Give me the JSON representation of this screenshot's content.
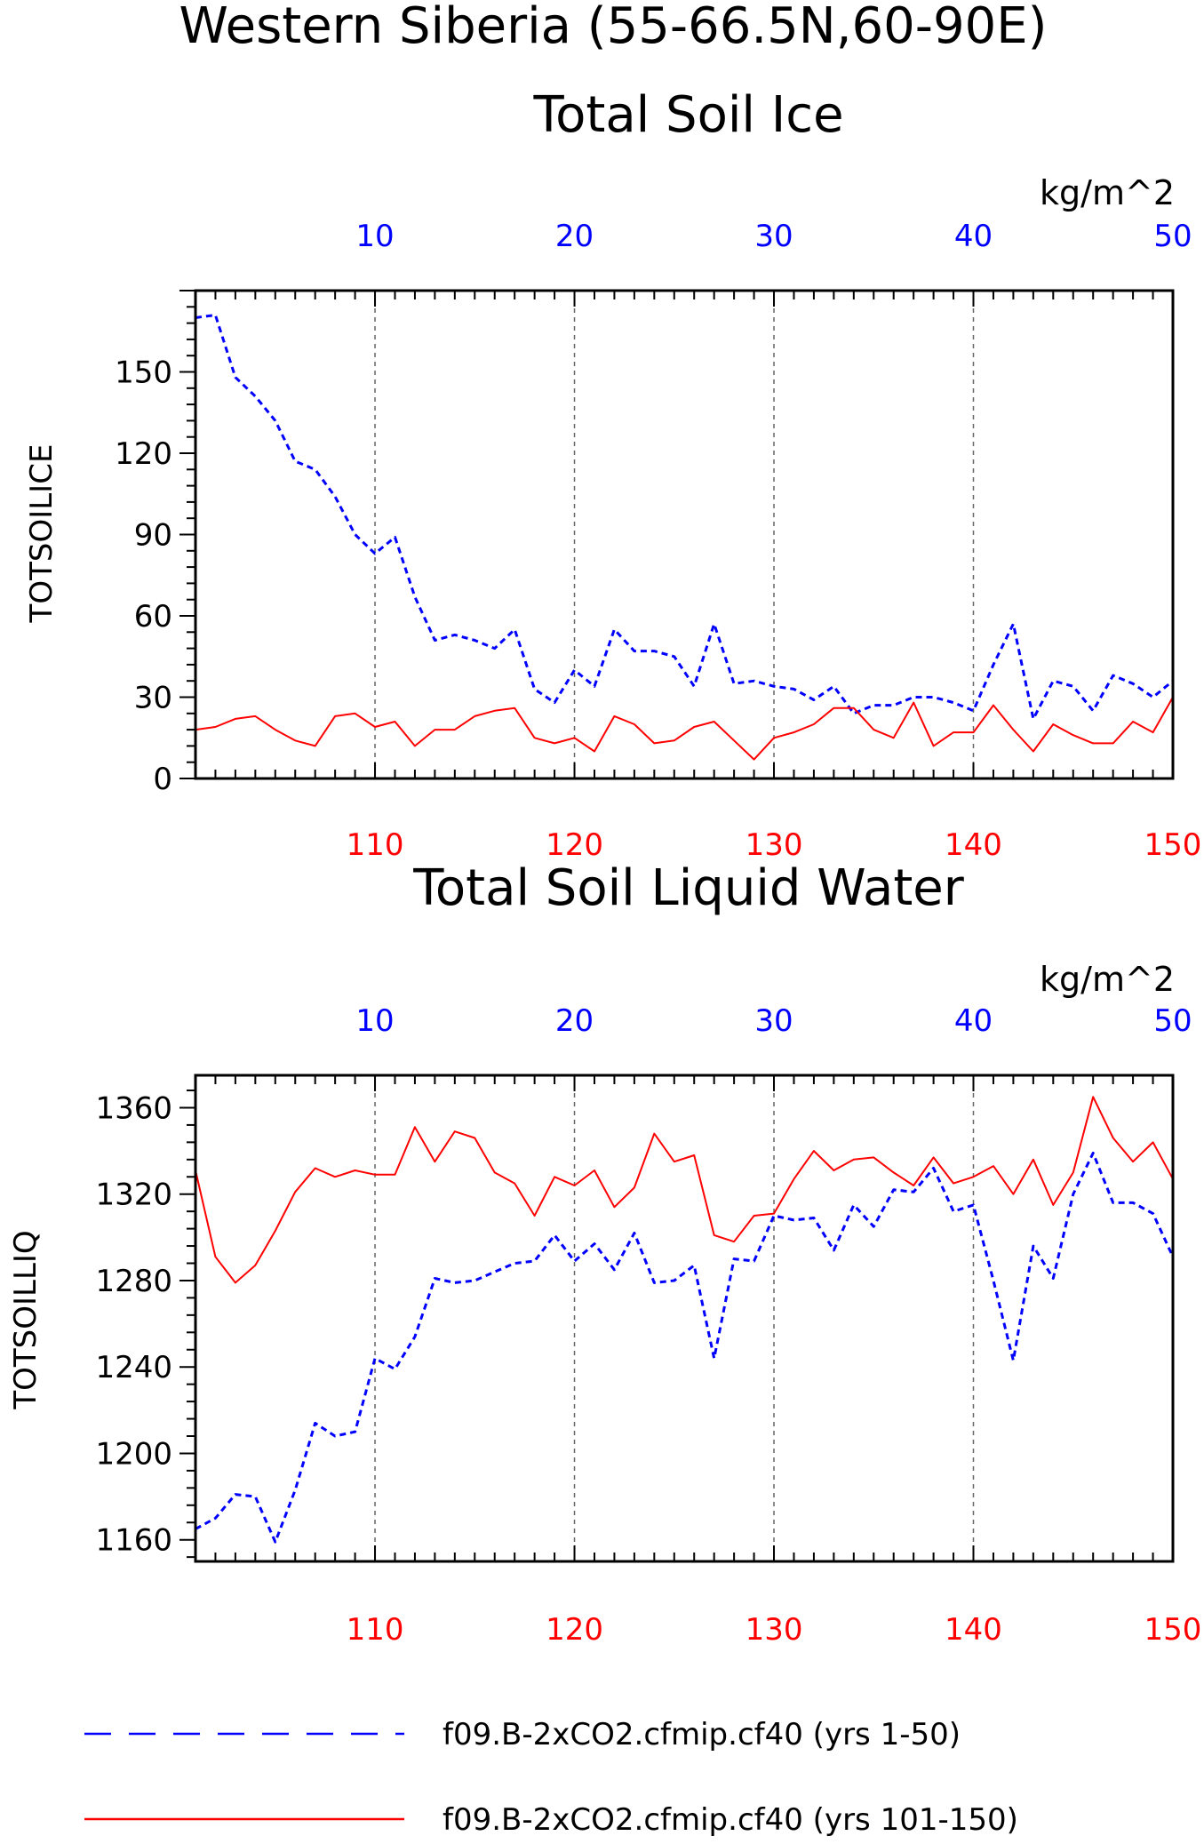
{
  "main_title": "Western Siberia (55-66.5N,60-90E)",
  "colors": {
    "blue": "#0000ff",
    "red": "#ff0000",
    "axis": "#000000",
    "grid": "#666666"
  },
  "legend": {
    "placement": "bottom",
    "entries": [
      {
        "label": "f09.B-2xCO2.cfmip.cf40 (yrs 1-50)",
        "color": "#0000ff",
        "style": "dashed"
      },
      {
        "label": "f09.B-2xCO2.cfmip.cf40 (yrs 101-150)",
        "color": "#ff0000",
        "style": "solid"
      }
    ]
  },
  "chart_data": [
    {
      "type": "line",
      "title": "Total Soil Ice",
      "ylabel": "TOTSOILICE",
      "units": "kg/m^2",
      "ylim": [
        0,
        180
      ],
      "yticks": [
        "0",
        "30",
        "60",
        "90",
        "120",
        "150"
      ],
      "top_xlim": [
        1,
        50
      ],
      "top_xticks": [
        "10",
        "20",
        "30",
        "40",
        "50"
      ],
      "bottom_xlim": [
        101,
        150
      ],
      "bottom_xticks": [
        "110",
        "120",
        "130",
        "140",
        "150"
      ],
      "grid": "dashed vertical at major x ticks",
      "series": [
        {
          "color": "#0000ff",
          "style": "dashed",
          "axis": "top",
          "x": [
            1,
            2,
            3,
            4,
            5,
            6,
            7,
            8,
            9,
            10,
            11,
            12,
            13,
            14,
            15,
            16,
            17,
            18,
            19,
            20,
            21,
            22,
            23,
            24,
            25,
            26,
            27,
            28,
            29,
            30,
            31,
            32,
            33,
            34,
            35,
            36,
            37,
            38,
            39,
            40,
            41,
            42,
            43,
            44,
            45,
            46,
            47,
            48,
            49,
            50
          ],
          "values": [
            170,
            171,
            148,
            141,
            132,
            117,
            114,
            104,
            90,
            83,
            89,
            67,
            51,
            53,
            51,
            48,
            55,
            33,
            28,
            40,
            34,
            55,
            47,
            47,
            45,
            34,
            57,
            35,
            36,
            34,
            33,
            29,
            34,
            24,
            27,
            27,
            30,
            30,
            28,
            25,
            42,
            57,
            22,
            36,
            34,
            25,
            38,
            35,
            30,
            36
          ]
        },
        {
          "color": "#ff0000",
          "style": "solid",
          "axis": "bottom",
          "x": [
            101,
            102,
            103,
            104,
            105,
            106,
            107,
            108,
            109,
            110,
            111,
            112,
            113,
            114,
            115,
            116,
            117,
            118,
            119,
            120,
            121,
            122,
            123,
            124,
            125,
            126,
            127,
            128,
            129,
            130,
            131,
            132,
            133,
            134,
            135,
            136,
            137,
            138,
            139,
            140,
            141,
            142,
            143,
            144,
            145,
            146,
            147,
            148,
            149,
            150
          ],
          "values": [
            18,
            19,
            22,
            23,
            18,
            14,
            12,
            23,
            24,
            19,
            21,
            12,
            18,
            18,
            23,
            25,
            26,
            15,
            13,
            15,
            10,
            23,
            20,
            13,
            14,
            19,
            21,
            14,
            7,
            15,
            17,
            20,
            26,
            26,
            18,
            15,
            28,
            12,
            17,
            17,
            27,
            18,
            10,
            20,
            16,
            13,
            13,
            21,
            17,
            30
          ]
        }
      ]
    },
    {
      "type": "line",
      "title": "Total Soil Liquid Water",
      "ylabel": "TOTSOILLIQ",
      "units": "kg/m^2",
      "ylim": [
        1150,
        1375
      ],
      "yticks": [
        "1160",
        "1200",
        "1240",
        "1280",
        "1320",
        "1360"
      ],
      "top_xlim": [
        1,
        50
      ],
      "top_xticks": [
        "10",
        "20",
        "30",
        "40",
        "50"
      ],
      "bottom_xlim": [
        101,
        150
      ],
      "bottom_xticks": [
        "110",
        "120",
        "130",
        "140",
        "150"
      ],
      "grid": "dashed vertical at major x ticks",
      "series": [
        {
          "color": "#0000ff",
          "style": "dashed",
          "axis": "top",
          "x": [
            1,
            2,
            3,
            4,
            5,
            6,
            7,
            8,
            9,
            10,
            11,
            12,
            13,
            14,
            15,
            16,
            17,
            18,
            19,
            20,
            21,
            22,
            23,
            24,
            25,
            26,
            27,
            28,
            29,
            30,
            31,
            32,
            33,
            34,
            35,
            36,
            37,
            38,
            39,
            40,
            41,
            42,
            43,
            44,
            45,
            46,
            47,
            48,
            49,
            50
          ],
          "values": [
            1165,
            1170,
            1181,
            1180,
            1159,
            1183,
            1214,
            1208,
            1210,
            1244,
            1239,
            1254,
            1281,
            1279,
            1280,
            1284,
            1288,
            1289,
            1301,
            1289,
            1297,
            1285,
            1302,
            1279,
            1280,
            1287,
            1244,
            1290,
            1289,
            1310,
            1308,
            1309,
            1294,
            1315,
            1305,
            1322,
            1321,
            1332,
            1312,
            1315,
            1280,
            1243,
            1296,
            1281,
            1320,
            1339,
            1316,
            1316,
            1311,
            1291
          ]
        },
        {
          "color": "#ff0000",
          "style": "solid",
          "axis": "bottom",
          "x": [
            101,
            102,
            103,
            104,
            105,
            106,
            107,
            108,
            109,
            110,
            111,
            112,
            113,
            114,
            115,
            116,
            117,
            118,
            119,
            120,
            121,
            122,
            123,
            124,
            125,
            126,
            127,
            128,
            129,
            130,
            131,
            132,
            133,
            134,
            135,
            136,
            137,
            138,
            139,
            140,
            141,
            142,
            143,
            144,
            145,
            146,
            147,
            148,
            149,
            150
          ],
          "values": [
            1331,
            1291,
            1279,
            1287,
            1303,
            1321,
            1332,
            1328,
            1331,
            1329,
            1329,
            1351,
            1335,
            1349,
            1346,
            1330,
            1325,
            1310,
            1328,
            1324,
            1331,
            1314,
            1323,
            1348,
            1335,
            1338,
            1301,
            1298,
            1310,
            1311,
            1327,
            1340,
            1331,
            1336,
            1337,
            1330,
            1324,
            1337,
            1325,
            1328,
            1333,
            1320,
            1336,
            1315,
            1330,
            1365,
            1346,
            1335,
            1344,
            1327
          ]
        }
      ]
    }
  ]
}
